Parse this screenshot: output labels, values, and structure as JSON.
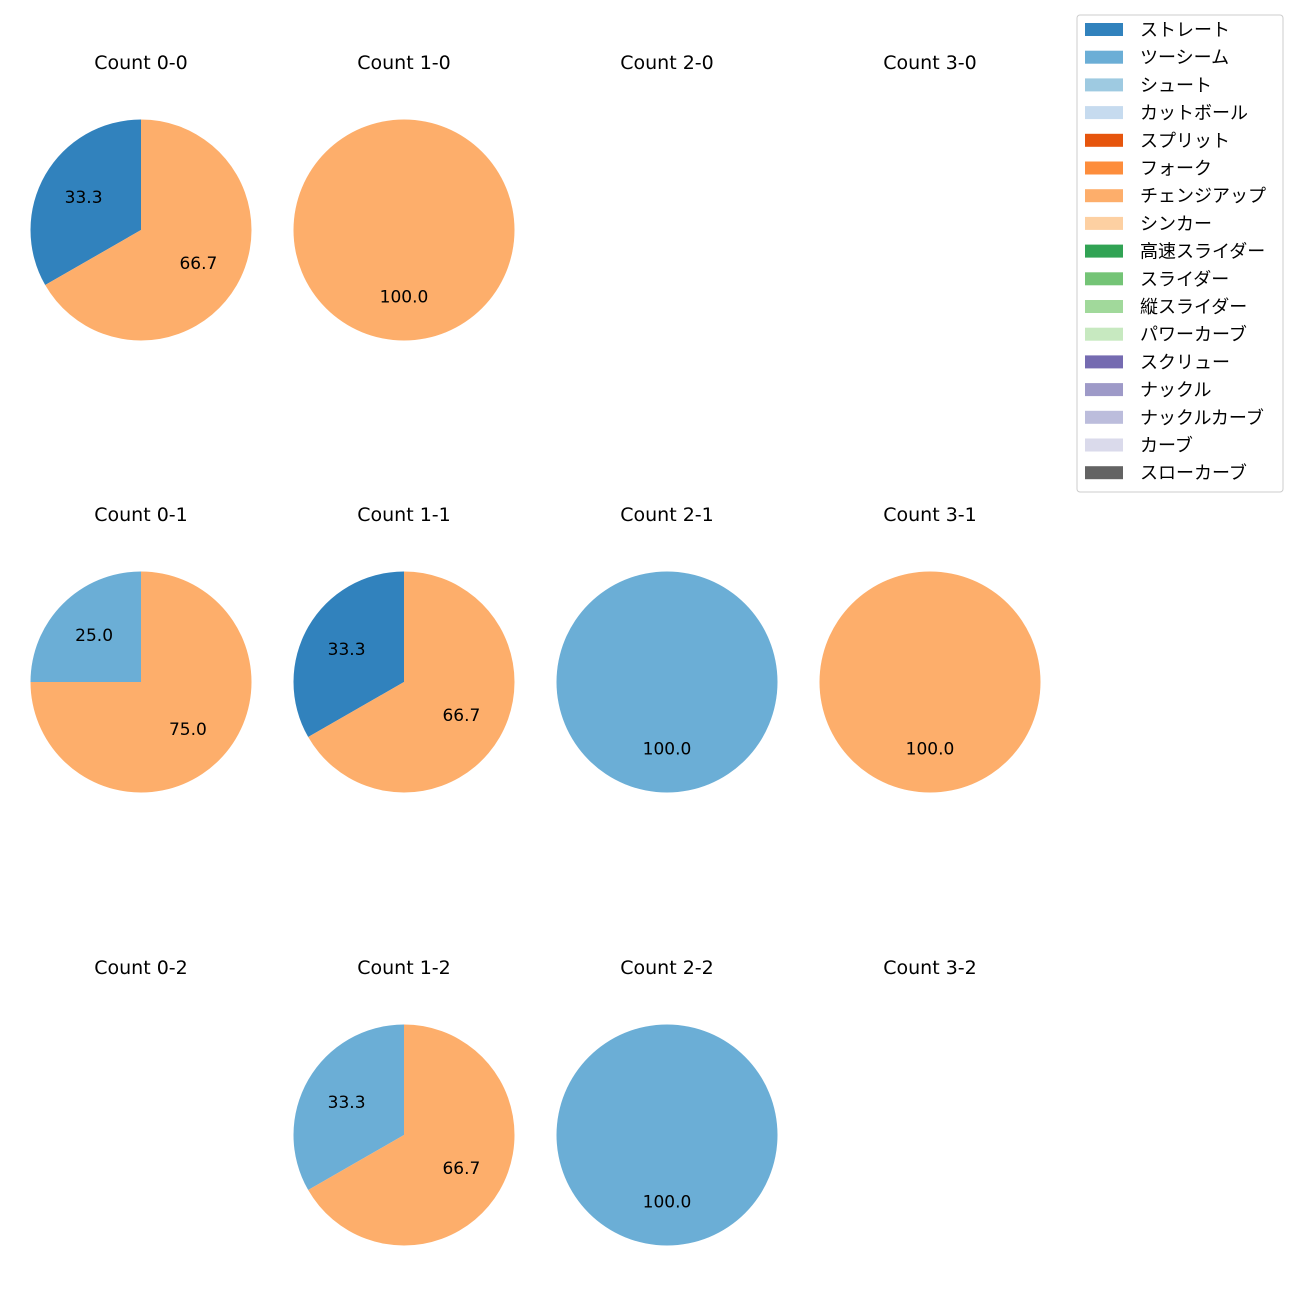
{
  "chart_data": {
    "type": "pie",
    "pitch_types": [
      {
        "name": "ストレート",
        "color": "#3182bd"
      },
      {
        "name": "ツーシーム",
        "color": "#6baed6"
      },
      {
        "name": "シュート",
        "color": "#9ecae1"
      },
      {
        "name": "カットボール",
        "color": "#c6dbef"
      },
      {
        "name": "スプリット",
        "color": "#e6550d"
      },
      {
        "name": "フォーク",
        "color": "#fd8d3c"
      },
      {
        "name": "チェンジアップ",
        "color": "#fdae6b"
      },
      {
        "name": "シンカー",
        "color": "#fdd0a2"
      },
      {
        "name": "高速スライダー",
        "color": "#31a354"
      },
      {
        "name": "スライダー",
        "color": "#74c476"
      },
      {
        "name": "縦スライダー",
        "color": "#a1d99b"
      },
      {
        "name": "パワーカーブ",
        "color": "#c7e9c0"
      },
      {
        "name": "スクリュー",
        "color": "#756bb1"
      },
      {
        "name": "ナックル",
        "color": "#9e9ac8"
      },
      {
        "name": "ナックルカーブ",
        "color": "#bcbddc"
      },
      {
        "name": "カーブ",
        "color": "#dadaeb"
      },
      {
        "name": "スローカーブ",
        "color": "#636363"
      }
    ],
    "panels": [
      {
        "title": "Count 0-0",
        "slices": [
          {
            "pitch": "ストレート",
            "value": 33.3,
            "label": "33.3"
          },
          {
            "pitch": "チェンジアップ",
            "value": 66.7,
            "label": "66.7"
          }
        ]
      },
      {
        "title": "Count 1-0",
        "slices": [
          {
            "pitch": "チェンジアップ",
            "value": 100.0,
            "label": "100.0"
          }
        ]
      },
      {
        "title": "Count 2-0",
        "slices": []
      },
      {
        "title": "Count 3-0",
        "slices": []
      },
      {
        "title": "Count 0-1",
        "slices": [
          {
            "pitch": "ツーシーム",
            "value": 25.0,
            "label": "25.0"
          },
          {
            "pitch": "チェンジアップ",
            "value": 75.0,
            "label": "75.0"
          }
        ]
      },
      {
        "title": "Count 1-1",
        "slices": [
          {
            "pitch": "ストレート",
            "value": 33.3,
            "label": "33.3"
          },
          {
            "pitch": "チェンジアップ",
            "value": 66.7,
            "label": "66.7"
          }
        ]
      },
      {
        "title": "Count 2-1",
        "slices": [
          {
            "pitch": "ツーシーム",
            "value": 100.0,
            "label": "100.0"
          }
        ]
      },
      {
        "title": "Count 3-1",
        "slices": [
          {
            "pitch": "チェンジアップ",
            "value": 100.0,
            "label": "100.0"
          }
        ]
      },
      {
        "title": "Count 0-2",
        "slices": []
      },
      {
        "title": "Count 1-2",
        "slices": [
          {
            "pitch": "ツーシーム",
            "value": 33.3,
            "label": "33.3"
          },
          {
            "pitch": "チェンジアップ",
            "value": 66.7,
            "label": "66.7"
          }
        ]
      },
      {
        "title": "Count 2-2",
        "slices": [
          {
            "pitch": "ツーシーム",
            "value": 100.0,
            "label": "100.0"
          }
        ]
      },
      {
        "title": "Count 3-2",
        "slices": []
      }
    ],
    "legend_position": "top-right"
  }
}
